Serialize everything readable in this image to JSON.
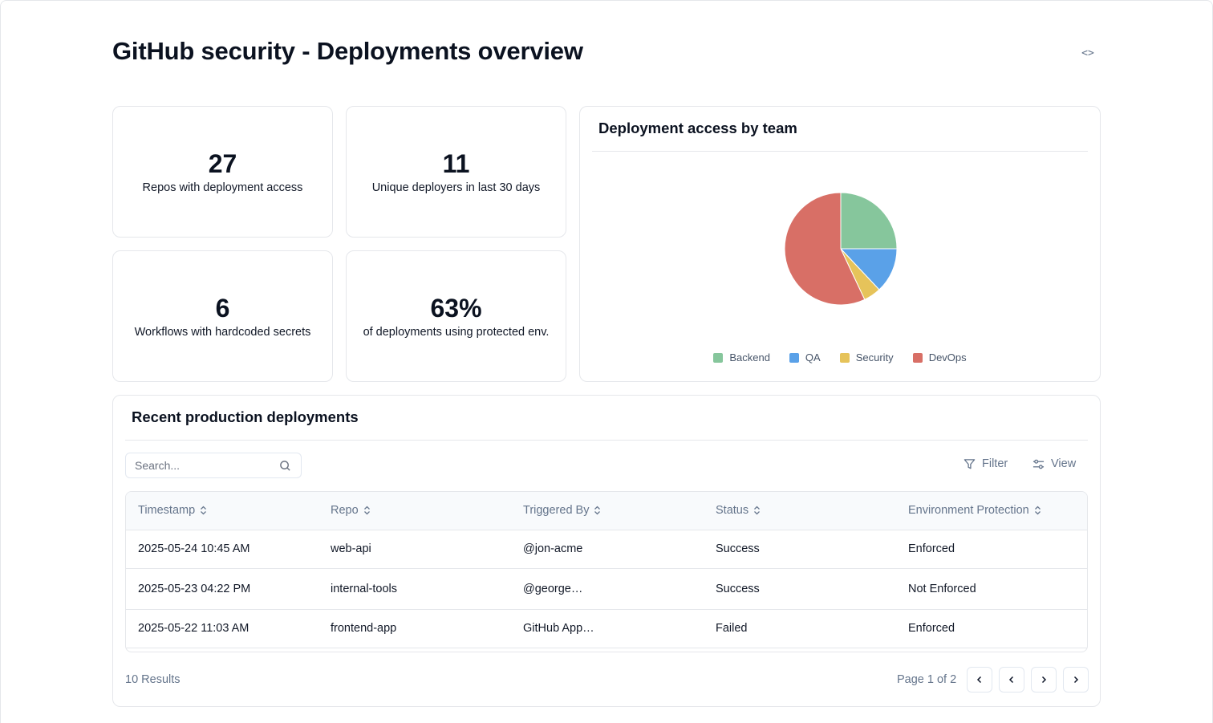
{
  "page": {
    "title": "GitHub security - Deployments overview",
    "code_toggle": "<>"
  },
  "stats": [
    {
      "value": "27",
      "label": "Repos with deployment access"
    },
    {
      "value": "11",
      "label": "Unique deployers in last 30 days"
    },
    {
      "value": "6",
      "label": "Workflows with hardcoded secrets"
    },
    {
      "value": "63%",
      "label": "of deployments using protected env."
    }
  ],
  "chart_card": {
    "title": "Deployment access by team"
  },
  "chart_data": {
    "type": "pie",
    "title": "Deployment access by team",
    "legend_position": "bottom",
    "slices": [
      {
        "name": "Backend",
        "value": 25,
        "color": "#86c69c"
      },
      {
        "name": "QA",
        "value": 13,
        "color": "#5aa1e8"
      },
      {
        "name": "Security",
        "value": 5,
        "color": "#e6c35a"
      },
      {
        "name": "DevOps",
        "value": 57,
        "color": "#d86f66"
      }
    ]
  },
  "table_card": {
    "title": "Recent production deployments",
    "search": {
      "placeholder": "Search...",
      "value": ""
    },
    "filter_label": "Filter",
    "view_label": "View",
    "columns": [
      "Timestamp",
      "Repo",
      "Triggered By",
      "Status",
      "Environment Protection"
    ],
    "rows": [
      [
        "2025-05-24 10:45 AM",
        "web-api",
        "@jon-acme",
        "Success",
        "Enforced"
      ],
      [
        "2025-05-23 04:22 PM",
        "internal-tools",
        "@george…",
        "Success",
        "Not Enforced"
      ],
      [
        "2025-05-22 11:03 AM",
        "frontend-app",
        "GitHub App…",
        "Failed",
        "Enforced"
      ]
    ],
    "results": "10 Results",
    "page_info": "Page 1 of 2"
  },
  "icons": {
    "code": "code-icon",
    "search": "search-icon",
    "filter": "filter-icon",
    "view": "sliders-icon",
    "sort": "chevrons-up-down-icon",
    "first": "chevron-left-icon",
    "prev": "chevron-left-icon",
    "next": "chevron-right-icon",
    "last": "chevron-right-icon"
  },
  "colors": {
    "border": "#e5e7eb",
    "muted_text": "#64748b",
    "header_bg": "#f8fafc"
  }
}
